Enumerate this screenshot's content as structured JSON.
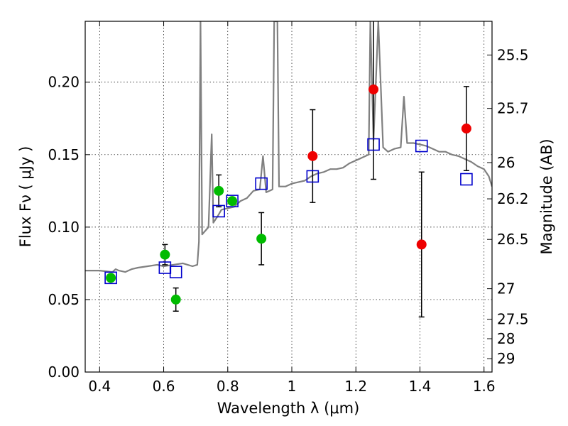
{
  "chart_data": {
    "type": "scatter",
    "xlabel": "Wavelength  λ (μm)",
    "ylabel": "Flux  Fν  ( μJy )",
    "y2label": "Magnitude (AB)",
    "xlim": [
      0.355,
      1.625
    ],
    "ylim": [
      0.0,
      0.242
    ],
    "grid": true,
    "x_ticks": [
      0.4,
      0.6,
      0.8,
      1.0,
      1.2,
      1.4,
      1.6
    ],
    "x_tick_labels": [
      "0.4",
      "0.6",
      "0.8",
      "1",
      "1.2",
      "1.4",
      "1.6"
    ],
    "y_ticks": [
      0.0,
      0.05,
      0.1,
      0.15,
      0.2
    ],
    "y_tick_labels": [
      "0.00",
      "0.05",
      "0.10",
      "0.15",
      "0.20"
    ],
    "y2_ticks": [
      {
        "flux": 0.2187,
        "label": "25.5"
      },
      {
        "flux": 0.1819,
        "label": "25.7"
      },
      {
        "flux": 0.1445,
        "label": "26"
      },
      {
        "flux": 0.1195,
        "label": "26.2"
      },
      {
        "flux": 0.0915,
        "label": "26.5"
      },
      {
        "flux": 0.0575,
        "label": "27"
      },
      {
        "flux": 0.0364,
        "label": "27.5"
      },
      {
        "flux": 0.023,
        "label": "28"
      },
      {
        "flux": 0.0092,
        "label": "29"
      }
    ],
    "series": [
      {
        "kind": "spectrum",
        "color": "#808080",
        "points": [
          [
            0.355,
            0.07
          ],
          [
            0.4,
            0.07
          ],
          [
            0.44,
            0.069
          ],
          [
            0.45,
            0.071
          ],
          [
            0.46,
            0.07
          ],
          [
            0.48,
            0.069
          ],
          [
            0.5,
            0.071
          ],
          [
            0.52,
            0.072
          ],
          [
            0.55,
            0.073
          ],
          [
            0.58,
            0.074
          ],
          [
            0.6,
            0.073
          ],
          [
            0.63,
            0.074
          ],
          [
            0.66,
            0.075
          ],
          [
            0.69,
            0.073
          ],
          [
            0.705,
            0.074
          ],
          [
            0.71,
            0.09
          ],
          [
            0.715,
            0.242
          ],
          [
            0.72,
            0.095
          ],
          [
            0.74,
            0.1
          ],
          [
            0.75,
            0.164
          ],
          [
            0.755,
            0.103
          ],
          [
            0.77,
            0.108
          ],
          [
            0.78,
            0.112
          ],
          [
            0.8,
            0.113
          ],
          [
            0.82,
            0.114
          ],
          [
            0.84,
            0.118
          ],
          [
            0.86,
            0.12
          ],
          [
            0.88,
            0.125
          ],
          [
            0.9,
            0.126
          ],
          [
            0.91,
            0.149
          ],
          [
            0.92,
            0.124
          ],
          [
            0.94,
            0.126
          ],
          [
            0.945,
            0.242
          ],
          [
            0.955,
            0.242
          ],
          [
            0.96,
            0.128
          ],
          [
            0.98,
            0.128
          ],
          [
            1.0,
            0.13
          ],
          [
            1.02,
            0.131
          ],
          [
            1.04,
            0.132
          ],
          [
            1.06,
            0.135
          ],
          [
            1.08,
            0.137
          ],
          [
            1.1,
            0.138
          ],
          [
            1.12,
            0.14
          ],
          [
            1.14,
            0.14
          ],
          [
            1.16,
            0.141
          ],
          [
            1.18,
            0.144
          ],
          [
            1.2,
            0.146
          ],
          [
            1.22,
            0.148
          ],
          [
            1.24,
            0.15
          ],
          [
            1.245,
            0.242
          ],
          [
            1.255,
            0.16
          ],
          [
            1.27,
            0.242
          ],
          [
            1.285,
            0.155
          ],
          [
            1.3,
            0.152
          ],
          [
            1.32,
            0.154
          ],
          [
            1.34,
            0.155
          ],
          [
            1.35,
            0.19
          ],
          [
            1.36,
            0.158
          ],
          [
            1.38,
            0.158
          ],
          [
            1.4,
            0.157
          ],
          [
            1.42,
            0.156
          ],
          [
            1.44,
            0.154
          ],
          [
            1.46,
            0.152
          ],
          [
            1.48,
            0.152
          ],
          [
            1.5,
            0.15
          ],
          [
            1.52,
            0.149
          ],
          [
            1.54,
            0.147
          ],
          [
            1.56,
            0.145
          ],
          [
            1.58,
            0.142
          ],
          [
            1.6,
            0.14
          ],
          [
            1.615,
            0.135
          ],
          [
            1.625,
            0.128
          ]
        ]
      },
      {
        "kind": "model-photometry",
        "marker": "open-square",
        "color": "#0000cc",
        "points": [
          [
            0.435,
            0.065
          ],
          [
            0.604,
            0.072
          ],
          [
            0.638,
            0.069
          ],
          [
            0.772,
            0.111
          ],
          [
            0.814,
            0.118
          ],
          [
            0.905,
            0.13
          ],
          [
            1.065,
            0.135
          ],
          [
            1.255,
            0.157
          ],
          [
            1.405,
            0.156
          ],
          [
            1.545,
            0.133
          ]
        ]
      },
      {
        "kind": "observed-optical",
        "marker": "filled-circle",
        "color": "#00bb00",
        "points": [
          {
            "x": 0.435,
            "y": 0.065,
            "err": null
          },
          {
            "x": 0.604,
            "y": 0.081,
            "err": 0.007
          },
          {
            "x": 0.638,
            "y": 0.05,
            "err": 0.008
          },
          {
            "x": 0.772,
            "y": 0.125,
            "err": 0.011
          },
          {
            "x": 0.814,
            "y": 0.118,
            "err": null
          },
          {
            "x": 0.905,
            "y": 0.092,
            "err": 0.018
          }
        ]
      },
      {
        "kind": "observed-nir",
        "marker": "filled-circle",
        "color": "#ee0000",
        "points": [
          {
            "x": 1.065,
            "y": 0.149,
            "err": 0.032
          },
          {
            "x": 1.255,
            "y": 0.195,
            "err": 0.062
          },
          {
            "x": 1.405,
            "y": 0.088,
            "err": 0.05
          },
          {
            "x": 1.545,
            "y": 0.168,
            "err": 0.029
          }
        ]
      }
    ]
  }
}
